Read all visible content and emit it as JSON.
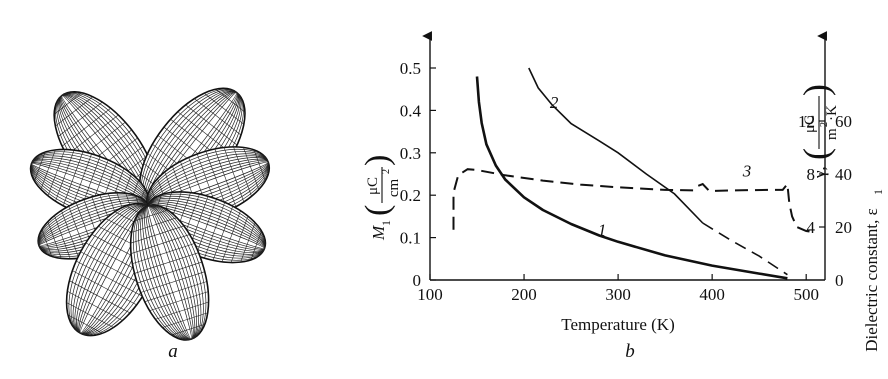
{
  "panels": {
    "a": {
      "label": "a",
      "image": "butterfly-shaped 3D wireframe surface (four-lobed angular dependence)"
    },
    "b": {
      "label": "b"
    }
  },
  "chart_data": {
    "type": "line",
    "xlabel": "Temperature (K)",
    "xlim": [
      100,
      520
    ],
    "xticks": [
      100,
      200,
      300,
      400,
      500
    ],
    "left_axis": {
      "label_main": "M",
      "label_sub": "1",
      "unit_num": "μC",
      "unit_den": "cm",
      "unit_den_sup": "2",
      "ylim": [
        0,
        0.5
      ],
      "ticks": [
        "0",
        "0.1",
        "0.2",
        "0.3",
        "0.4",
        "0.5"
      ]
    },
    "right_axis_gamma": {
      "label_main": "γ,",
      "unit_num": "μC",
      "unit_den": "m",
      "unit_den_sup": "2",
      "unit_den_tail": "·K",
      "ylim": [
        0,
        16
      ],
      "ticks": [
        "4",
        "8",
        "12"
      ]
    },
    "right_axis_eps": {
      "label": "Dielectric constant, ε",
      "label_sub": "1",
      "ylim": [
        0,
        80
      ],
      "ticks": [
        "20",
        "40",
        "60"
      ]
    },
    "zero_label": "0",
    "series": [
      {
        "name": "1",
        "axis": "M1",
        "style": "thick-solid",
        "label_at": [
          283,
          0.105
        ],
        "points": [
          [
            150,
            0.48
          ],
          [
            152,
            0.42
          ],
          [
            155,
            0.37
          ],
          [
            160,
            0.32
          ],
          [
            170,
            0.27
          ],
          [
            180,
            0.237
          ],
          [
            200,
            0.195
          ],
          [
            220,
            0.165
          ],
          [
            250,
            0.132
          ],
          [
            280,
            0.105
          ],
          [
            300,
            0.09
          ],
          [
            350,
            0.058
          ],
          [
            400,
            0.034
          ],
          [
            450,
            0.015
          ],
          [
            480,
            0.004
          ]
        ]
      },
      {
        "name": "2",
        "axis": "gamma",
        "style": "thin-solid-then-dashed",
        "label_at": [
          232,
          13.0
        ],
        "points": [
          [
            205,
            16.0
          ],
          [
            215,
            14.5
          ],
          [
            230,
            13.2
          ],
          [
            250,
            11.8
          ],
          [
            280,
            10.5
          ],
          [
            300,
            9.6
          ],
          [
            330,
            8.0
          ],
          [
            360,
            6.5
          ],
          [
            390,
            4.3
          ]
        ],
        "dashed_points": [
          [
            390,
            4.3
          ],
          [
            420,
            3.0
          ],
          [
            450,
            1.8
          ],
          [
            480,
            0.4
          ]
        ]
      },
      {
        "name": "3",
        "axis": "eps",
        "style": "dashed",
        "label_at": [
          437,
          39.0
        ],
        "points": [
          [
            125,
            19.0
          ],
          [
            125,
            33.0
          ],
          [
            130,
            39.5
          ],
          [
            140,
            41.8
          ],
          [
            150,
            41.5
          ],
          [
            180,
            39.5
          ],
          [
            220,
            37.5
          ],
          [
            260,
            36.0
          ],
          [
            300,
            35.0
          ],
          [
            350,
            34.0
          ],
          [
            380,
            33.8
          ],
          [
            385,
            35.5
          ],
          [
            390,
            36.2
          ],
          [
            397,
            33.6
          ],
          [
            420,
            33.8
          ],
          [
            460,
            34.0
          ],
          [
            475,
            34.0
          ],
          [
            480,
            36.2
          ],
          [
            482,
            29.0
          ],
          [
            485,
            24.0
          ],
          [
            490,
            20.0
          ],
          [
            500,
            18.5
          ],
          [
            510,
            18.0
          ]
        ]
      }
    ]
  }
}
